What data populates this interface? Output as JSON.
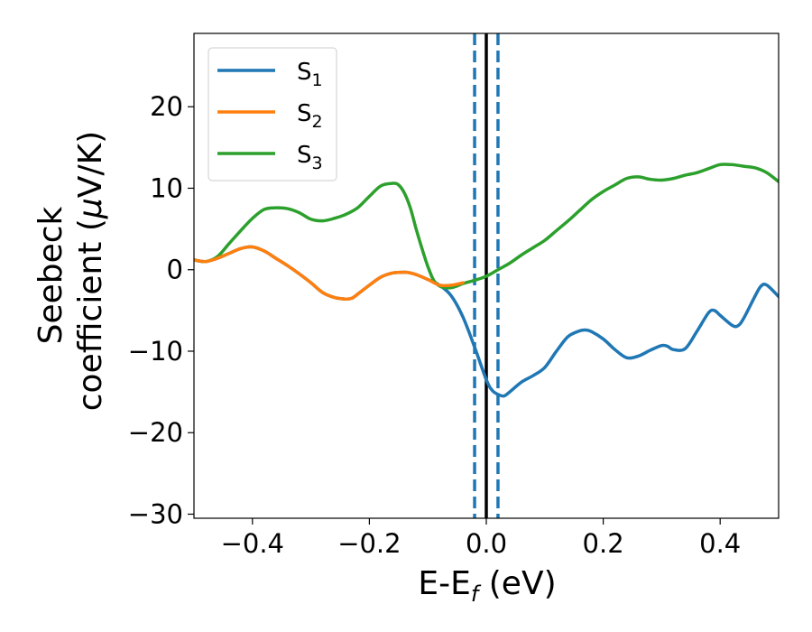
{
  "chart_data": {
    "type": "line",
    "xlabel": {
      "main": "E-E",
      "sub": "f",
      "unit": " (eV)"
    },
    "ylabel": {
      "line1": "Seebeck",
      "line2_prefix": "coefficient  (",
      "mu": "μ",
      "line2_suffix": "V/K)"
    },
    "xlim": [
      -0.5,
      0.5
    ],
    "ylim": [
      -30.5,
      29
    ],
    "xticks": [
      -0.4,
      -0.2,
      0.0,
      0.2,
      0.4
    ],
    "xtick_labels": [
      "−0.4",
      "−0.2",
      "0.0",
      "0.2",
      "0.4"
    ],
    "yticks": [
      -30,
      -20,
      -10,
      0,
      10,
      20
    ],
    "ytick_labels": [
      "−30",
      "−20",
      "−10",
      "0",
      "10",
      "20"
    ],
    "grid": false,
    "legend_position": "top-left",
    "vertical_lines": [
      {
        "x": -0.02,
        "style": "dashed",
        "color": "#1f77b4"
      },
      {
        "x": 0.0,
        "style": "solid",
        "color": "#000000"
      },
      {
        "x": 0.02,
        "style": "dashed",
        "color": "#1f77b4"
      }
    ],
    "series": [
      {
        "name": "S",
        "sub": "1",
        "color": "#1f77b4",
        "x": [
          -0.5,
          -0.48,
          -0.46,
          -0.44,
          -0.42,
          -0.4,
          -0.38,
          -0.36,
          -0.34,
          -0.32,
          -0.3,
          -0.28,
          -0.26,
          -0.24,
          -0.23,
          -0.22,
          -0.2,
          -0.18,
          -0.16,
          -0.14,
          -0.13,
          -0.12,
          -0.1,
          -0.08,
          -0.06,
          -0.04,
          -0.02,
          0.0,
          0.01,
          0.02,
          0.03,
          0.04,
          0.06,
          0.08,
          0.1,
          0.12,
          0.14,
          0.16,
          0.17,
          0.18,
          0.2,
          0.22,
          0.24,
          0.26,
          0.28,
          0.3,
          0.31,
          0.32,
          0.34,
          0.36,
          0.38,
          0.39,
          0.4,
          0.42,
          0.43,
          0.44,
          0.46,
          0.47,
          0.48,
          0.5
        ],
        "y": [
          1.2,
          1.0,
          1.4,
          2.0,
          2.6,
          2.8,
          2.3,
          1.4,
          0.5,
          -0.5,
          -1.6,
          -2.8,
          -3.4,
          -3.6,
          -3.5,
          -3.0,
          -1.9,
          -0.9,
          -0.4,
          -0.3,
          -0.4,
          -0.6,
          -1.2,
          -1.9,
          -3.2,
          -5.8,
          -9.5,
          -13.5,
          -14.8,
          -15.3,
          -15.5,
          -15.0,
          -13.8,
          -13.0,
          -12.0,
          -10.0,
          -8.2,
          -7.5,
          -7.4,
          -7.6,
          -8.5,
          -9.8,
          -10.8,
          -10.6,
          -9.9,
          -9.3,
          -9.4,
          -9.8,
          -9.7,
          -7.6,
          -5.3,
          -5.0,
          -5.6,
          -6.8,
          -6.9,
          -6.0,
          -3.2,
          -2.0,
          -1.9,
          -3.3
        ]
      },
      {
        "name": "S",
        "sub": "2",
        "color": "#ff7f0e",
        "x": [
          -0.5,
          -0.48,
          -0.46,
          -0.44,
          -0.42,
          -0.4,
          -0.38,
          -0.36,
          -0.34,
          -0.32,
          -0.3,
          -0.28,
          -0.26,
          -0.24,
          -0.23,
          -0.22,
          -0.2,
          -0.18,
          -0.16,
          -0.14,
          -0.13,
          -0.12,
          -0.1,
          -0.08,
          -0.06,
          -0.04
        ],
        "y": [
          1.2,
          1.0,
          1.4,
          2.0,
          2.6,
          2.8,
          2.3,
          1.4,
          0.5,
          -0.5,
          -1.6,
          -2.8,
          -3.4,
          -3.6,
          -3.5,
          -3.0,
          -1.9,
          -0.9,
          -0.4,
          -0.3,
          -0.4,
          -0.6,
          -1.2,
          -1.9,
          -1.9,
          -1.6
        ]
      },
      {
        "name": "S",
        "sub": "3",
        "color": "#2ca02c",
        "x": [
          -0.5,
          -0.48,
          -0.46,
          -0.44,
          -0.42,
          -0.4,
          -0.38,
          -0.36,
          -0.34,
          -0.32,
          -0.3,
          -0.28,
          -0.26,
          -0.24,
          -0.22,
          -0.2,
          -0.18,
          -0.16,
          -0.15,
          -0.14,
          -0.13,
          -0.12,
          -0.11,
          -0.1,
          -0.09,
          -0.08,
          -0.07,
          -0.06,
          -0.05,
          -0.04,
          -0.02,
          0.0,
          0.02,
          0.04,
          0.06,
          0.08,
          0.1,
          0.12,
          0.14,
          0.16,
          0.18,
          0.2,
          0.22,
          0.24,
          0.26,
          0.28,
          0.3,
          0.32,
          0.34,
          0.36,
          0.38,
          0.4,
          0.42,
          0.44,
          0.46,
          0.48,
          0.5
        ],
        "y": [
          1.2,
          1.0,
          1.6,
          3.2,
          4.8,
          6.3,
          7.4,
          7.6,
          7.5,
          7.0,
          6.2,
          6.0,
          6.3,
          6.8,
          7.6,
          9.0,
          10.3,
          10.6,
          10.4,
          9.4,
          7.6,
          5.0,
          2.6,
          0.4,
          -1.3,
          -2.0,
          -2.2,
          -2.2,
          -2.0,
          -1.7,
          -1.3,
          -0.8,
          0.0,
          0.8,
          1.8,
          2.7,
          3.6,
          4.8,
          6.0,
          7.3,
          8.6,
          9.6,
          10.4,
          11.2,
          11.4,
          11.1,
          11.0,
          11.2,
          11.6,
          11.9,
          12.4,
          12.9,
          12.9,
          12.7,
          12.5,
          11.9,
          10.8
        ]
      }
    ]
  }
}
